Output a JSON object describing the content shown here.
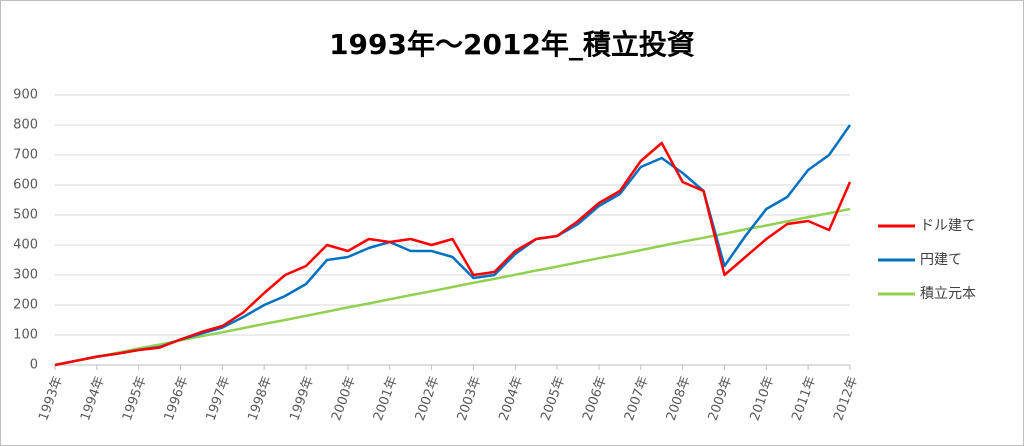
{
  "chart_data": {
    "type": "line",
    "title": "1993年～2012年_積立投資",
    "categories": [
      "1993年",
      null,
      "1994年",
      null,
      "1995年",
      null,
      "1996年",
      null,
      "1997年",
      null,
      "1998年",
      null,
      "1999年",
      null,
      "2000年",
      null,
      "2001年",
      null,
      "2002年",
      null,
      "2003年",
      null,
      "2004年",
      null,
      "2005年",
      null,
      "2006年",
      null,
      "2007年",
      null,
      "2008年",
      null,
      "2009年",
      null,
      "2010年",
      null,
      "2011年",
      null,
      "2012年"
    ],
    "series": [
      {
        "name": "ドル建て",
        "color": "#ff0000",
        "values": [
          0,
          14,
          28,
          38,
          50,
          58,
          85,
          110,
          130,
          175,
          240,
          300,
          330,
          400,
          380,
          420,
          410,
          420,
          400,
          420,
          300,
          310,
          380,
          420,
          430,
          480,
          540,
          580,
          680,
          740,
          610,
          580,
          300,
          360,
          420,
          470,
          480,
          450,
          610
        ]
      },
      {
        "name": "円建て",
        "color": "#0070c0",
        "values": [
          0,
          14,
          28,
          38,
          50,
          60,
          85,
          105,
          125,
          160,
          200,
          230,
          270,
          350,
          360,
          390,
          410,
          380,
          380,
          360,
          290,
          300,
          370,
          420,
          430,
          470,
          530,
          570,
          660,
          690,
          640,
          580,
          330,
          430,
          520,
          560,
          650,
          700,
          800
        ]
      },
      {
        "name": "積立元本",
        "color": "#92d050",
        "values": [
          0,
          14,
          27,
          41,
          55,
          68,
          82,
          96,
          109,
          123,
          137,
          150,
          164,
          178,
          192,
          205,
          219,
          233,
          246,
          260,
          274,
          287,
          301,
          315,
          328,
          342,
          356,
          369,
          383,
          397,
          411,
          424,
          438,
          452,
          465,
          479,
          493,
          506,
          520
        ]
      }
    ],
    "ylim": [
      0,
      900
    ],
    "yticks": [
      0,
      100,
      200,
      300,
      400,
      500,
      600,
      700,
      800,
      900
    ],
    "grid": true,
    "legend": "right"
  }
}
